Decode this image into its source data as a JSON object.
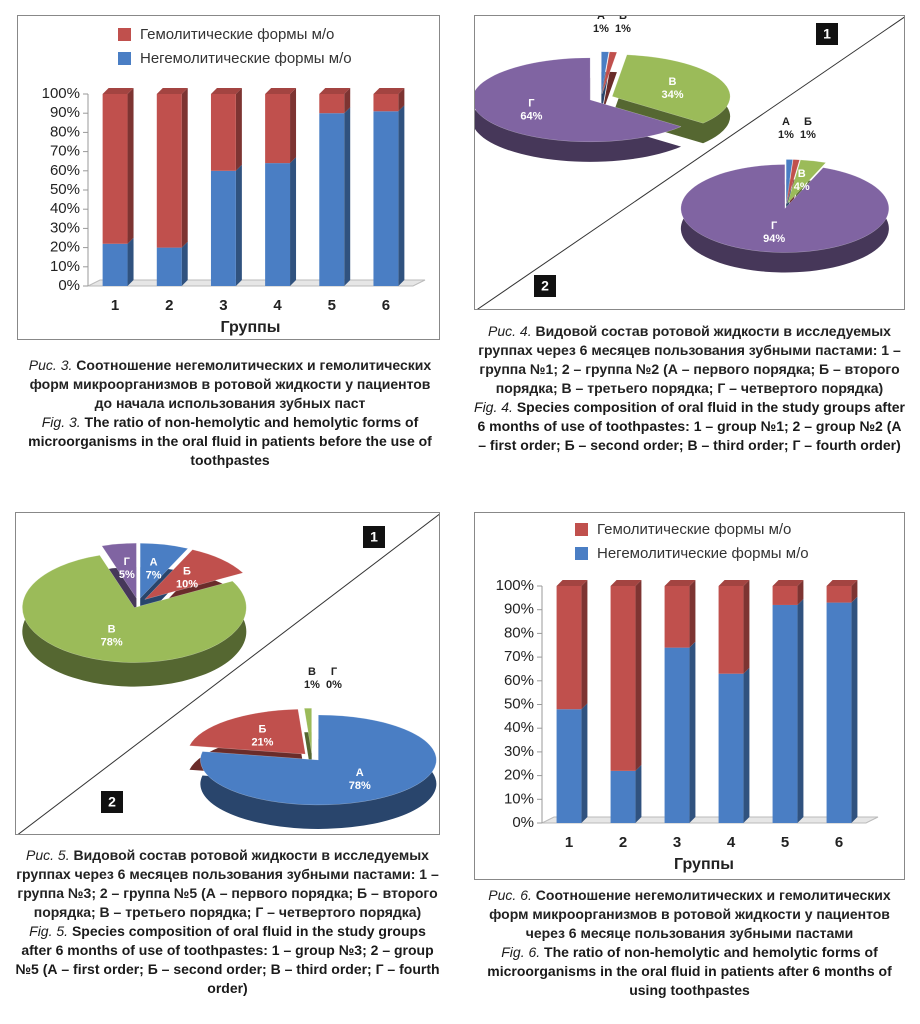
{
  "chart_data": [
    {
      "type": "bar",
      "stacked": true,
      "categories": [
        "1",
        "2",
        "3",
        "4",
        "5",
        "6"
      ],
      "x_label": "Группы",
      "series": [
        {
          "name": "Гемолитические формы м/о",
          "color": "#c0504d",
          "values": [
            78,
            80,
            40,
            36,
            10,
            9
          ]
        },
        {
          "name": "Негемолитические формы м/о",
          "color": "#4a7ec4",
          "values": [
            22,
            20,
            60,
            64,
            90,
            91
          ]
        }
      ],
      "ylim": [
        0,
        100
      ],
      "yticks": [
        {
          "value": 0,
          "label": "0%"
        },
        {
          "value": 10,
          "label": "10%"
        },
        {
          "value": 20,
          "label": "20%"
        },
        {
          "value": 30,
          "label": "30%"
        },
        {
          "value": 40,
          "label": "40%"
        },
        {
          "value": 50,
          "label": "50%"
        },
        {
          "value": 60,
          "label": "60%"
        },
        {
          "value": 70,
          "label": "70%"
        },
        {
          "value": 80,
          "label": "80%"
        },
        {
          "value": 90,
          "label": "90%"
        },
        {
          "value": 100,
          "label": "100%"
        }
      ],
      "grid": false
    },
    {
      "type": "pie",
      "panel": "1",
      "categories": [
        "А",
        "Б",
        "В",
        "Г"
      ],
      "values": [
        1,
        1,
        34,
        64
      ],
      "value_labels": [
        "1%",
        "1%",
        "34%",
        "64%"
      ],
      "colors": [
        "#4a7ec4",
        "#c0504d",
        "#9bbb59",
        "#8064a2"
      ]
    },
    {
      "type": "pie",
      "panel": "2",
      "categories": [
        "А",
        "Б",
        "В",
        "Г"
      ],
      "values": [
        1,
        1,
        4,
        94
      ],
      "value_labels": [
        "1%",
        "1%",
        "4%",
        "94%"
      ],
      "colors": [
        "#4a7ec4",
        "#c0504d",
        "#9bbb59",
        "#8064a2"
      ]
    },
    {
      "type": "pie",
      "panel": "1",
      "categories": [
        "А",
        "Б",
        "В",
        "Г"
      ],
      "values": [
        7,
        10,
        78,
        5
      ],
      "value_labels": [
        "7%",
        "10%",
        "78%",
        "5%"
      ],
      "colors": [
        "#4a7ec4",
        "#c0504d",
        "#9bbb59",
        "#8064a2"
      ]
    },
    {
      "type": "pie",
      "panel": "2",
      "categories": [
        "А",
        "Б",
        "В",
        "Г"
      ],
      "values": [
        78,
        21,
        1,
        0
      ],
      "value_labels": [
        "78%",
        "21%",
        "1%",
        "0%"
      ],
      "colors": [
        "#4a7ec4",
        "#c0504d",
        "#9bbb59",
        "#8064a2"
      ]
    },
    {
      "type": "bar",
      "stacked": true,
      "categories": [
        "1",
        "2",
        "3",
        "4",
        "5",
        "6"
      ],
      "x_label": "Группы",
      "series": [
        {
          "name": "Гемолитические формы м/о",
          "color": "#c0504d",
          "values": [
            52,
            78,
            26,
            37,
            8,
            7
          ]
        },
        {
          "name": "Негемолитические формы м/о",
          "color": "#4a7ec4",
          "values": [
            48,
            22,
            74,
            63,
            92,
            93
          ]
        }
      ],
      "ylim": [
        0,
        100
      ],
      "yticks": [
        {
          "value": 0,
          "label": "0%"
        },
        {
          "value": 10,
          "label": "10%"
        },
        {
          "value": 20,
          "label": "20%"
        },
        {
          "value": 30,
          "label": "30%"
        },
        {
          "value": 40,
          "label": "40%"
        },
        {
          "value": 50,
          "label": "50%"
        },
        {
          "value": 60,
          "label": "60%"
        },
        {
          "value": 70,
          "label": "70%"
        },
        {
          "value": 80,
          "label": "80%"
        },
        {
          "value": 90,
          "label": "90%"
        },
        {
          "value": 100,
          "label": "100%"
        }
      ],
      "grid": false
    }
  ],
  "captions": [
    {
      "label_ru": "Рис. 3.",
      "text_ru": "Соотношение негемолитических и гемолитических форм микроорганизмов в ротовой жидкости у пациентов до начала использования зубных паст",
      "label_en": "Fig. 3.",
      "text_en": "The ratio of non-hemolytic and hemolytic forms of microorganisms in the oral fluid in patients before the use of toothpastes"
    },
    {
      "label_ru": "Рис. 4.",
      "text_ru": "Видовой состав ротовой жидкости в исследуемых группах через 6 месяцев пользования зубными пастами: 1 – группа №1; 2 – группа №2 (А – первого порядка; Б – второго порядка; В – третьего порядка; Г – четвертого порядка)",
      "label_en": "Fig. 4.",
      "text_en": "Species composition of oral fluid in the study groups after 6 months of use of toothpastes: 1 – group №1; 2 – group №2 (А – first order; Б – second order; В – third order; Г – fourth order)"
    },
    {
      "label_ru": "Рис. 5.",
      "text_ru": "Видовой состав ротовой жидкости в исследуемых группах через 6 месяцев пользования зубными пастами: 1 – группа №3; 2 – группа №5 (А – первого порядка; Б – второго порядка; В – третьего порядка; Г – четвертого порядка)",
      "label_en": "Fig. 5.",
      "text_en": "Species composition of oral fluid in the study groups after 6 months of use of toothpastes: 1 – group №3; 2 – group №5 (А – first order; Б – second order; В – third order; Г – fourth order)"
    },
    {
      "label_ru": "Рис. 6.",
      "text_ru": "Соотношение негемолитических и гемолитических форм микроорганизмов в ротовой жидкости у пациентов через 6 месяце пользования зубными пастами",
      "label_en": "Fig. 6.",
      "text_en": "The ratio of non-hemolytic and hemolytic forms of microorganisms in the oral fluid in patients after 6 months of using toothpastes"
    }
  ]
}
